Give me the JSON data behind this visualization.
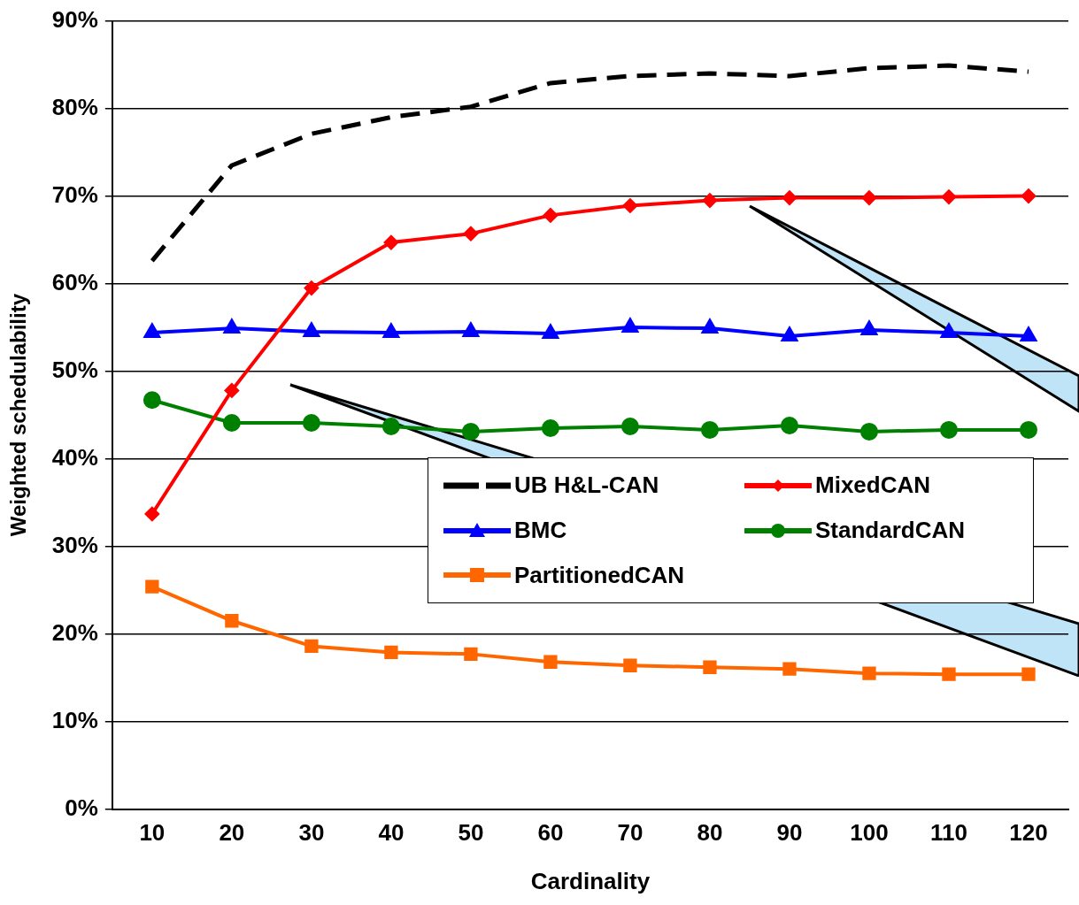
{
  "chart_data": {
    "type": "line",
    "xlabel": "Cardinality",
    "ylabel": "Weighted schedulability",
    "categories": [
      "10",
      "20",
      "30",
      "40",
      "50",
      "60",
      "70",
      "80",
      "90",
      "100",
      "110",
      "120"
    ],
    "ylim": [
      0,
      90
    ],
    "yticks": [
      {
        "value": 0,
        "label": "0%"
      },
      {
        "value": 10,
        "label": "10%"
      },
      {
        "value": 20,
        "label": "20%"
      },
      {
        "value": 30,
        "label": "30%"
      },
      {
        "value": 40,
        "label": "40%"
      },
      {
        "value": 50,
        "label": "50%"
      },
      {
        "value": 60,
        "label": "60%"
      },
      {
        "value": 70,
        "label": "70%"
      },
      {
        "value": 80,
        "label": "80%"
      },
      {
        "value": 90,
        "label": "90%"
      }
    ],
    "grid": "y",
    "legend": "bottom right",
    "series": [
      {
        "name": "UB H&L-CAN",
        "color": "#000000",
        "marker": "none",
        "line_style": "dashed",
        "values": [
          62.6,
          73.5,
          77.1,
          79,
          80.2,
          82.9,
          83.7,
          84,
          83.7,
          84.6,
          84.9,
          84.2
        ]
      },
      {
        "name": "MixedCAN",
        "color": "#ff0000",
        "marker": "diamond",
        "line_style": "solid",
        "values": [
          33.7,
          47.8,
          59.5,
          64.7,
          65.7,
          67.8,
          68.9,
          69.5,
          69.8,
          69.8,
          69.9,
          70
        ]
      },
      {
        "name": "BMC",
        "color": "#0000ff",
        "marker": "triangle",
        "line_style": "solid",
        "values": [
          54.4,
          54.9,
          54.5,
          54.4,
          54.5,
          54.3,
          55,
          54.9,
          54,
          54.7,
          54.4,
          54
        ]
      },
      {
        "name": "StandardCAN",
        "color": "#008000",
        "marker": "circle",
        "line_style": "solid",
        "values": [
          46.7,
          44.1,
          44.1,
          43.7,
          43.1,
          43.5,
          43.7,
          43.3,
          43.8,
          43.1,
          43.3,
          43.3
        ]
      },
      {
        "name": "PartitionedCAN",
        "color": "#ff6600",
        "marker": "square",
        "line_style": "solid",
        "values": [
          25.4,
          21.5,
          18.6,
          17.9,
          17.7,
          16.8,
          16.4,
          16.2,
          16,
          15.5,
          15.4,
          15.4
        ]
      }
    ]
  }
}
